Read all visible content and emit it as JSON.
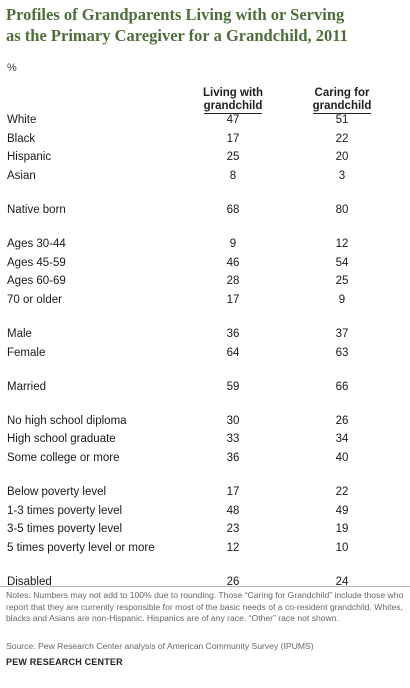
{
  "title_line1": "Profiles of Grandparents Living with or Serving",
  "title_line2": "as the Primary Caregiver for a Grandchild, 2011",
  "unit": "%",
  "chart_data": {
    "type": "table",
    "columns": [
      {
        "line1": "Living with",
        "line2": "grandchild"
      },
      {
        "line1": "Caring for",
        "line2": "grandchild"
      }
    ],
    "groups": [
      [
        {
          "label": "White",
          "values": [
            "47",
            "51"
          ]
        },
        {
          "label": "Black",
          "values": [
            "17",
            "22"
          ]
        },
        {
          "label": "Hispanic",
          "values": [
            "25",
            "20"
          ]
        },
        {
          "label": "Asian",
          "values": [
            "8",
            "3"
          ]
        }
      ],
      [
        {
          "label": "Native born",
          "values": [
            "68",
            "80"
          ]
        }
      ],
      [
        {
          "label": "Ages 30-44",
          "values": [
            "9",
            "12"
          ]
        },
        {
          "label": "Ages 45-59",
          "values": [
            "46",
            "54"
          ]
        },
        {
          "label": "Ages 60-69",
          "values": [
            "28",
            "25"
          ]
        },
        {
          "label": "70 or older",
          "values": [
            "17",
            "9"
          ]
        }
      ],
      [
        {
          "label": "Male",
          "values": [
            "36",
            "37"
          ]
        },
        {
          "label": "Female",
          "values": [
            "64",
            "63"
          ]
        }
      ],
      [
        {
          "label": "Married",
          "values": [
            "59",
            "66"
          ]
        }
      ],
      [
        {
          "label": "No high school diploma",
          "values": [
            "30",
            "26"
          ]
        },
        {
          "label": "High school graduate",
          "values": [
            "33",
            "34"
          ]
        },
        {
          "label": "Some college or more",
          "values": [
            "36",
            "40"
          ]
        }
      ],
      [
        {
          "label": "Below poverty level",
          "values": [
            "17",
            "22"
          ]
        },
        {
          "label": "1-3 times poverty level",
          "values": [
            "48",
            "49"
          ]
        },
        {
          "label": "3-5 times poverty level",
          "values": [
            "23",
            "19"
          ]
        },
        {
          "label": "5 times poverty level or more",
          "values": [
            "12",
            "10"
          ]
        }
      ],
      [
        {
          "label": "Disabled",
          "values": [
            "26",
            "24"
          ]
        }
      ]
    ]
  },
  "notes": "Notes: Numbers may not add to 100% due to rounding. Those “Caring for Grandchild” include those who report that they are currently responsible for most of the basic needs of a co-resident grandchild. Whites, blacks and Asians are non-Hispanic. Hispanics are of any race. “Other” race not shown.",
  "source": "Source: Pew Research Center analysis of American Community Survey (IPUMS)",
  "org": "PEW RESEARCH CENTER",
  "colors": {
    "title": "#4c6f3a",
    "divider": "#b5b5b5"
  }
}
